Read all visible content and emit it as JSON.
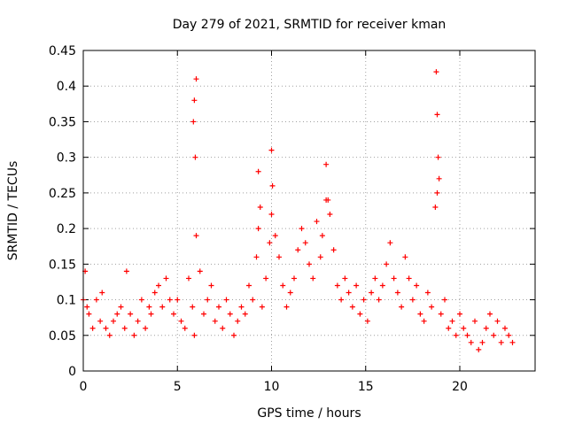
{
  "chart_data": {
    "type": "scatter",
    "title": "Day 279 of 2021, SRMTID for receiver kman",
    "xlabel": "GPS time / hours",
    "ylabel": "SRMTID / TECUs",
    "xlim": [
      0,
      24
    ],
    "ylim": [
      0,
      0.45
    ],
    "x_ticks": [
      0,
      5,
      10,
      15,
      20
    ],
    "x_tick_labels": [
      "0",
      "5",
      "10",
      "15",
      "20"
    ],
    "y_ticks": [
      0,
      0.05,
      0.1,
      0.15,
      0.2,
      0.25,
      0.3,
      0.35,
      0.4,
      0.45
    ],
    "y_tick_labels": [
      "0",
      "0.05",
      "0.1",
      "0.15",
      "0.2",
      "0.25",
      "0.3",
      "0.35",
      "0.4",
      "0.45"
    ],
    "grid": true,
    "marker": "plus",
    "color": "#ff0000",
    "series": [
      {
        "name": "SRMTID",
        "x": [
          0.0,
          0.1,
          0.2,
          0.3,
          0.5,
          0.7,
          0.9,
          1.0,
          1.2,
          1.4,
          1.6,
          1.8,
          2.0,
          2.2,
          2.3,
          2.5,
          2.7,
          2.9,
          3.1,
          3.3,
          3.5,
          3.6,
          3.8,
          4.0,
          4.2,
          4.4,
          4.6,
          4.8,
          5.0,
          5.2,
          5.4,
          5.6,
          5.8,
          5.9,
          6.0,
          6.2,
          6.4,
          6.6,
          6.8,
          7.0,
          7.2,
          7.4,
          7.6,
          7.8,
          8.0,
          8.2,
          8.4,
          8.6,
          8.8,
          9.0,
          9.2,
          9.3,
          9.5,
          9.7,
          9.9,
          10.0,
          10.2,
          10.4,
          10.6,
          10.8,
          11.0,
          11.2,
          11.4,
          11.6,
          11.8,
          12.0,
          12.2,
          12.4,
          12.6,
          12.7,
          12.9,
          13.1,
          13.3,
          13.5,
          13.7,
          13.9,
          14.1,
          14.3,
          14.5,
          14.7,
          14.9,
          15.1,
          15.3,
          15.5,
          15.7,
          15.9,
          16.1,
          16.3,
          16.5,
          16.7,
          16.9,
          17.1,
          17.3,
          17.5,
          17.7,
          17.9,
          18.1,
          18.3,
          18.5,
          18.7,
          18.8,
          19.0,
          19.2,
          19.4,
          19.6,
          19.8,
          20.0,
          20.2,
          20.4,
          20.6,
          20.8,
          21.0,
          21.2,
          21.4,
          21.6,
          21.8,
          22.0,
          22.2,
          22.4,
          22.6,
          22.8,
          5.85,
          5.9,
          5.95,
          6.0,
          9.3,
          9.4,
          10.0,
          10.05,
          12.9,
          13.0,
          18.75,
          18.8,
          18.85,
          18.9
        ],
        "y": [
          0.1,
          0.14,
          0.09,
          0.08,
          0.06,
          0.1,
          0.07,
          0.11,
          0.06,
          0.05,
          0.07,
          0.08,
          0.09,
          0.06,
          0.14,
          0.08,
          0.05,
          0.07,
          0.1,
          0.06,
          0.09,
          0.08,
          0.11,
          0.12,
          0.09,
          0.13,
          0.1,
          0.08,
          0.1,
          0.07,
          0.06,
          0.13,
          0.09,
          0.05,
          0.19,
          0.14,
          0.08,
          0.1,
          0.12,
          0.07,
          0.09,
          0.06,
          0.1,
          0.08,
          0.05,
          0.07,
          0.09,
          0.08,
          0.12,
          0.1,
          0.16,
          0.2,
          0.09,
          0.13,
          0.18,
          0.22,
          0.19,
          0.16,
          0.12,
          0.09,
          0.11,
          0.13,
          0.17,
          0.2,
          0.18,
          0.15,
          0.13,
          0.21,
          0.16,
          0.19,
          0.24,
          0.22,
          0.17,
          0.12,
          0.1,
          0.13,
          0.11,
          0.09,
          0.12,
          0.08,
          0.1,
          0.07,
          0.11,
          0.13,
          0.1,
          0.12,
          0.15,
          0.18,
          0.13,
          0.11,
          0.09,
          0.16,
          0.13,
          0.1,
          0.12,
          0.08,
          0.07,
          0.11,
          0.09,
          0.23,
          0.25,
          0.08,
          0.1,
          0.06,
          0.07,
          0.05,
          0.08,
          0.06,
          0.05,
          0.04,
          0.07,
          0.03,
          0.04,
          0.06,
          0.08,
          0.05,
          0.07,
          0.04,
          0.06,
          0.05,
          0.04,
          0.35,
          0.38,
          0.3,
          0.41,
          0.28,
          0.23,
          0.31,
          0.26,
          0.29,
          0.24,
          0.42,
          0.36,
          0.3,
          0.27
        ]
      }
    ]
  }
}
